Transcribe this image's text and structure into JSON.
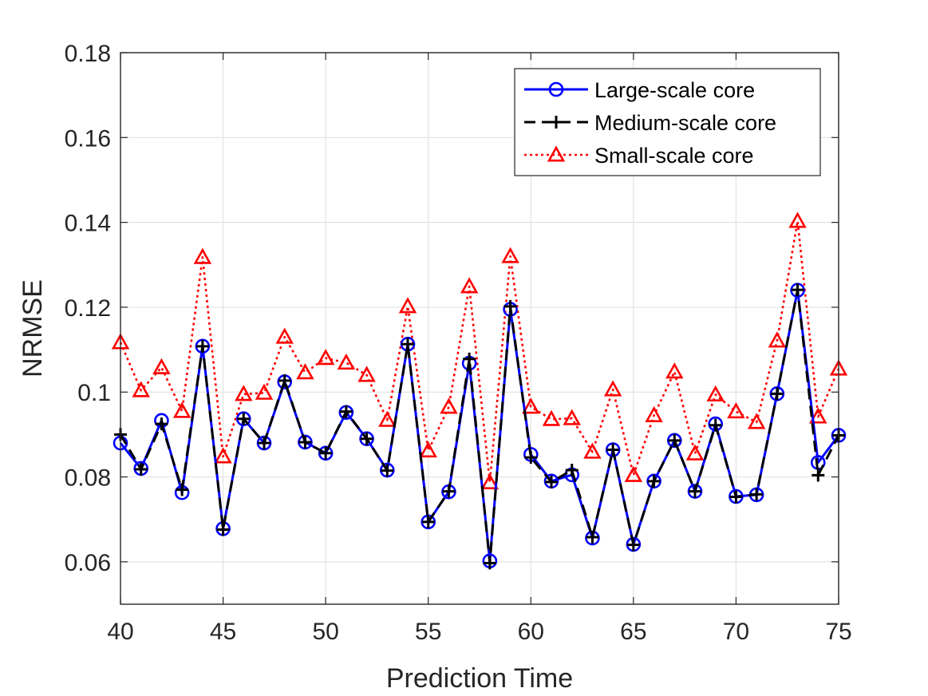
{
  "chart_data": {
    "type": "line",
    "title": "",
    "xlabel": "Prediction Time",
    "ylabel": "NRMSE",
    "xlim": [
      40,
      75
    ],
    "ylim": [
      0.05,
      0.18
    ],
    "grid": true,
    "legend_position": "top-right",
    "x_ticks": [
      40,
      45,
      50,
      55,
      60,
      65,
      70,
      75
    ],
    "x_tick_labels": [
      "40",
      "45",
      "50",
      "55",
      "60",
      "65",
      "70",
      "75"
    ],
    "y_ticks": [
      0.06,
      0.08,
      0.1,
      0.12,
      0.14,
      0.16,
      0.18
    ],
    "y_tick_labels": [
      "0.06",
      "0.08",
      "0.1",
      "0.12",
      "0.14",
      "0.16",
      "0.18"
    ],
    "x": [
      40,
      41,
      42,
      43,
      44,
      45,
      46,
      47,
      48,
      49,
      50,
      51,
      52,
      53,
      54,
      55,
      56,
      57,
      58,
      59,
      60,
      61,
      62,
      63,
      64,
      65,
      66,
      67,
      68,
      69,
      70,
      71,
      72,
      73,
      74,
      75
    ],
    "series": [
      {
        "name": "Large-scale core",
        "color": "#0000ff",
        "line_style": "solid",
        "marker": "circle",
        "values": [
          0.088,
          0.082,
          0.0933,
          0.0763,
          0.1108,
          0.0678,
          0.0937,
          0.088,
          0.1024,
          0.0882,
          0.0856,
          0.0952,
          0.089,
          0.0816,
          0.1113,
          0.0694,
          0.0765,
          0.1068,
          0.0602,
          0.1195,
          0.0853,
          0.079,
          0.0805,
          0.0656,
          0.0864,
          0.0641,
          0.079,
          0.0886,
          0.0766,
          0.0925,
          0.0754,
          0.0758,
          0.0996,
          0.124,
          0.0834,
          0.0898
        ]
      },
      {
        "name": "Medium-scale core",
        "color": "#000000",
        "line_style": "dashed",
        "marker": "plus",
        "values": [
          0.09,
          0.0818,
          0.0925,
          0.077,
          0.1108,
          0.0676,
          0.0937,
          0.088,
          0.1027,
          0.0882,
          0.0856,
          0.0954,
          0.089,
          0.0815,
          0.1113,
          0.0694,
          0.0766,
          0.1078,
          0.0597,
          0.1202,
          0.0846,
          0.0788,
          0.0816,
          0.0658,
          0.0864,
          0.064,
          0.079,
          0.0886,
          0.0766,
          0.0922,
          0.0753,
          0.0759,
          0.0996,
          0.1241,
          0.0804,
          0.0898
        ]
      },
      {
        "name": "Small-scale core",
        "color": "#ff0000",
        "line_style": "dotted",
        "marker": "triangle",
        "values": [
          0.1117,
          0.1004,
          0.1058,
          0.0955,
          0.1318,
          0.0848,
          0.0995,
          0.0998,
          0.113,
          0.1046,
          0.108,
          0.1069,
          0.104,
          0.0934,
          0.1202,
          0.0862,
          0.0965,
          0.1249,
          0.0787,
          0.132,
          0.0965,
          0.0936,
          0.0938,
          0.0859,
          0.1006,
          0.0804,
          0.0945,
          0.1048,
          0.0855,
          0.0994,
          0.0954,
          0.0929,
          0.1121,
          0.1403,
          0.0942,
          0.1055
        ]
      }
    ]
  }
}
